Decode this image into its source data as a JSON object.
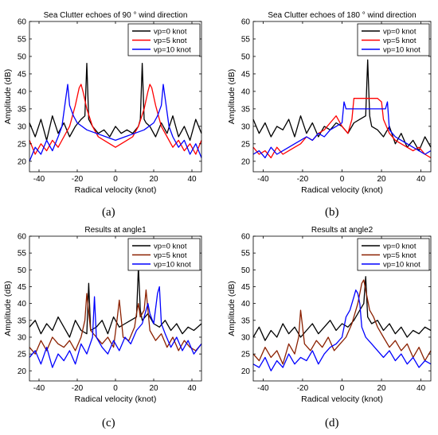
{
  "figure": {
    "panel_labels": [
      "(a)",
      "(b)",
      "(c)",
      "(d)"
    ]
  },
  "chart_data": [
    {
      "type": "line",
      "title": "Sea Clutter echoes of 90 ° wind direction",
      "xlabel": "Radical velocity (knot)",
      "ylabel": "Amplitude (dB)",
      "xlim": [
        -45,
        45
      ],
      "ylim": [
        17,
        60
      ],
      "xticks": [
        -40,
        -20,
        0,
        20,
        40
      ],
      "yticks": [
        20,
        25,
        30,
        35,
        40,
        45,
        50,
        55,
        60
      ],
      "legend_position": "top-right",
      "series": [
        {
          "name": "vp=0 knot",
          "color": "#000000",
          "x": [
            -45,
            -42,
            -39,
            -36,
            -33,
            -30,
            -27,
            -24,
            -21,
            -18,
            -16,
            -15,
            -14,
            -13,
            -12,
            -9,
            -6,
            -3,
            0,
            3,
            6,
            9,
            12,
            13,
            14,
            15,
            16,
            18,
            21,
            24,
            27,
            30,
            33,
            36,
            39,
            42,
            45
          ],
          "values": [
            31,
            27,
            32,
            26,
            33,
            28,
            31,
            27,
            30,
            32,
            33,
            48,
            32,
            31,
            30,
            28,
            29,
            27,
            30,
            28,
            29,
            28,
            30,
            32,
            48,
            32,
            31,
            30,
            27,
            31,
            28,
            33,
            27,
            30,
            26,
            32,
            28
          ]
        },
        {
          "name": "vp=5 knot",
          "color": "#ff0000",
          "x": [
            -45,
            -42,
            -39,
            -36,
            -33,
            -30,
            -27,
            -24,
            -21,
            -19,
            -18,
            -17,
            -15,
            -12,
            -9,
            -6,
            -3,
            0,
            3,
            6,
            9,
            12,
            15,
            17,
            18,
            19,
            21,
            24,
            27,
            30,
            33,
            36,
            39,
            42,
            45
          ],
          "values": [
            26,
            22,
            25,
            23,
            26,
            24,
            27,
            30,
            36,
            41,
            42,
            40,
            35,
            30,
            27,
            26,
            25,
            24,
            25,
            26,
            27,
            30,
            35,
            40,
            42,
            41,
            36,
            30,
            27,
            24,
            26,
            23,
            25,
            22,
            26
          ]
        },
        {
          "name": "vp=10 knot",
          "color": "#0000ff",
          "x": [
            -45,
            -42,
            -39,
            -36,
            -33,
            -30,
            -28,
            -26,
            -25,
            -24,
            -22,
            -20,
            -15,
            -10,
            -5,
            0,
            5,
            10,
            15,
            20,
            22,
            24,
            25,
            26,
            28,
            30,
            33,
            36,
            39,
            42,
            45
          ],
          "values": [
            20,
            24,
            22,
            26,
            23,
            27,
            30,
            38,
            42,
            36,
            33,
            31,
            29,
            28,
            27,
            26,
            27,
            28,
            29,
            31,
            33,
            36,
            42,
            38,
            30,
            27,
            24,
            26,
            22,
            25,
            21
          ]
        }
      ]
    },
    {
      "type": "line",
      "title": "Sea Clutter echoes of 180 ° wind direction",
      "xlabel": "Radical velocity (knot)",
      "ylabel": "Amplitude (dB)",
      "xlim": [
        -45,
        45
      ],
      "ylim": [
        17,
        60
      ],
      "xticks": [
        -40,
        -20,
        0,
        20,
        40
      ],
      "yticks": [
        20,
        25,
        30,
        35,
        40,
        45,
        50,
        55,
        60
      ],
      "legend_position": "top-right",
      "series": [
        {
          "name": "vp=0 knot",
          "color": "#000000",
          "x": [
            -45,
            -42,
            -39,
            -36,
            -33,
            -30,
            -27,
            -24,
            -21,
            -18,
            -15,
            -12,
            -9,
            -6,
            -3,
            0,
            3,
            6,
            9,
            12,
            13,
            14,
            15,
            18,
            21,
            24,
            27,
            30,
            33,
            36,
            39,
            42,
            45
          ],
          "values": [
            32,
            28,
            31,
            27,
            30,
            29,
            32,
            27,
            33,
            28,
            31,
            27,
            30,
            29,
            31,
            30,
            28,
            31,
            32,
            33,
            49,
            33,
            30,
            29,
            27,
            30,
            25,
            28,
            24,
            26,
            23,
            27,
            24
          ]
        },
        {
          "name": "vp=5 knot",
          "color": "#ff0000",
          "x": [
            -45,
            -42,
            -39,
            -36,
            -33,
            -30,
            -27,
            -24,
            -21,
            -18,
            -15,
            -12,
            -9,
            -6,
            -3,
            0,
            3,
            5,
            6,
            9,
            12,
            15,
            18,
            20,
            21,
            24,
            27,
            30,
            33,
            36,
            39,
            42,
            45
          ],
          "values": [
            24,
            22,
            23,
            21,
            24,
            22,
            23,
            24,
            25,
            27,
            26,
            28,
            29,
            31,
            33,
            30,
            28,
            32,
            38,
            38,
            38,
            38,
            38,
            37,
            32,
            28,
            26,
            25,
            24,
            23,
            24,
            22,
            21
          ]
        },
        {
          "name": "vp=10 knot",
          "color": "#0000ff",
          "x": [
            -45,
            -42,
            -39,
            -36,
            -33,
            -30,
            -27,
            -24,
            -21,
            -18,
            -15,
            -12,
            -9,
            -6,
            -3,
            0,
            1,
            2,
            5,
            10,
            15,
            20,
            22,
            23,
            24,
            27,
            30,
            33,
            36,
            39,
            42,
            45
          ],
          "values": [
            22,
            23,
            21,
            24,
            22,
            23,
            24,
            25,
            26,
            27,
            26,
            28,
            27,
            29,
            30,
            31,
            37,
            35,
            35,
            35,
            35,
            35,
            35,
            37,
            29,
            27,
            26,
            25,
            24,
            23,
            22,
            23
          ]
        }
      ]
    },
    {
      "type": "line",
      "title": "Results at angle1",
      "xlabel": "Radical velocity (knot)",
      "ylabel": "Amplitude (dB)",
      "xlim": [
        -45,
        45
      ],
      "ylim": [
        17,
        60
      ],
      "xticks": [
        -40,
        -20,
        0,
        20,
        40
      ],
      "yticks": [
        20,
        25,
        30,
        35,
        40,
        45,
        50,
        55,
        60
      ],
      "legend_position": "top-right",
      "series": [
        {
          "name": "vp=0 knot",
          "color": "#000000",
          "x": [
            -45,
            -42,
            -39,
            -36,
            -33,
            -30,
            -27,
            -24,
            -21,
            -18,
            -15,
            -14,
            -13,
            -10,
            -7,
            -4,
            -1,
            2,
            5,
            8,
            11,
            12,
            13,
            14,
            17,
            20,
            23,
            26,
            29,
            32,
            35,
            38,
            41,
            45
          ],
          "values": [
            33,
            35,
            31,
            34,
            32,
            36,
            33,
            30,
            35,
            32,
            31,
            46,
            32,
            33,
            35,
            31,
            36,
            33,
            34,
            35,
            36,
            51,
            38,
            35,
            37,
            34,
            33,
            35,
            32,
            34,
            31,
            33,
            32,
            34
          ]
        },
        {
          "name": "vp=5 knot",
          "color": "#8b2000",
          "x": [
            -45,
            -42,
            -39,
            -36,
            -33,
            -30,
            -27,
            -24,
            -21,
            -18,
            -16,
            -15,
            -13,
            -10,
            -7,
            -4,
            -1,
            1,
            2,
            4,
            7,
            10,
            11,
            12,
            13,
            15,
            16,
            18,
            21,
            24,
            27,
            30,
            33,
            36,
            39,
            42,
            45
          ],
          "values": [
            27,
            25,
            29,
            26,
            30,
            28,
            27,
            29,
            26,
            30,
            35,
            43,
            32,
            30,
            28,
            30,
            27,
            36,
            41,
            30,
            29,
            33,
            37,
            40,
            36,
            38,
            44,
            32,
            29,
            31,
            27,
            30,
            26,
            29,
            27,
            26,
            28
          ]
        },
        {
          "name": "vp=10 knot",
          "color": "#0000ff",
          "x": [
            -45,
            -42,
            -39,
            -36,
            -33,
            -30,
            -27,
            -24,
            -21,
            -18,
            -15,
            -12,
            -11,
            -10,
            -7,
            -4,
            -1,
            2,
            5,
            8,
            11,
            14,
            16,
            17,
            18,
            20,
            22,
            23,
            24,
            26,
            29,
            32,
            35,
            38,
            41,
            45
          ],
          "values": [
            24,
            26,
            22,
            27,
            21,
            25,
            23,
            26,
            22,
            28,
            25,
            30,
            42,
            30,
            27,
            25,
            29,
            26,
            30,
            28,
            32,
            34,
            38,
            40,
            37,
            34,
            43,
            45,
            34,
            31,
            27,
            30,
            26,
            29,
            25,
            28
          ]
        }
      ]
    },
    {
      "type": "line",
      "title": "Results at angle2",
      "xlabel": "Radical velocity (knot)",
      "ylabel": "Amplitude (dB)",
      "xlim": [
        -45,
        45
      ],
      "ylim": [
        17,
        60
      ],
      "xticks": [
        -40,
        -20,
        0,
        20,
        40
      ],
      "yticks": [
        20,
        25,
        30,
        35,
        40,
        45,
        50,
        55,
        60
      ],
      "legend_position": "top-right",
      "series": [
        {
          "name": "vp=0 knot",
          "color": "#000000",
          "x": [
            -45,
            -42,
            -39,
            -36,
            -33,
            -30,
            -27,
            -24,
            -21,
            -18,
            -15,
            -12,
            -9,
            -6,
            -3,
            0,
            3,
            6,
            9,
            11,
            12,
            13,
            15,
            18,
            21,
            24,
            27,
            30,
            33,
            36,
            39,
            42,
            45
          ],
          "values": [
            30,
            33,
            29,
            32,
            30,
            34,
            31,
            33,
            30,
            32,
            34,
            31,
            33,
            35,
            32,
            34,
            33,
            35,
            38,
            40,
            48,
            36,
            34,
            35,
            32,
            34,
            31,
            33,
            30,
            32,
            31,
            33,
            32
          ]
        },
        {
          "name": "vp=5 knot",
          "color": "#8b2000",
          "x": [
            -45,
            -42,
            -39,
            -36,
            -33,
            -30,
            -27,
            -24,
            -22,
            -21,
            -19,
            -16,
            -13,
            -10,
            -7,
            -4,
            -1,
            2,
            5,
            8,
            10,
            11,
            12,
            14,
            16,
            18,
            21,
            24,
            27,
            30,
            33,
            36,
            39,
            42,
            45
          ],
          "values": [
            25,
            23,
            27,
            24,
            26,
            22,
            28,
            25,
            30,
            38,
            28,
            26,
            29,
            27,
            30,
            26,
            28,
            30,
            34,
            40,
            46,
            47,
            44,
            38,
            36,
            33,
            30,
            27,
            29,
            26,
            28,
            24,
            27,
            23,
            26
          ]
        },
        {
          "name": "vp=10 knot",
          "color": "#0000ff",
          "x": [
            -45,
            -42,
            -39,
            -36,
            -33,
            -30,
            -27,
            -24,
            -21,
            -18,
            -15,
            -12,
            -9,
            -6,
            -3,
            0,
            2,
            4,
            6,
            7,
            8,
            9,
            10,
            12,
            15,
            18,
            21,
            24,
            27,
            30,
            33,
            36,
            39,
            42,
            45
          ],
          "values": [
            22,
            21,
            24,
            20,
            23,
            21,
            25,
            22,
            24,
            23,
            26,
            22,
            25,
            27,
            28,
            30,
            36,
            38,
            42,
            44,
            43,
            40,
            33,
            30,
            28,
            26,
            24,
            26,
            23,
            25,
            22,
            24,
            21,
            23,
            22
          ]
        }
      ]
    }
  ]
}
